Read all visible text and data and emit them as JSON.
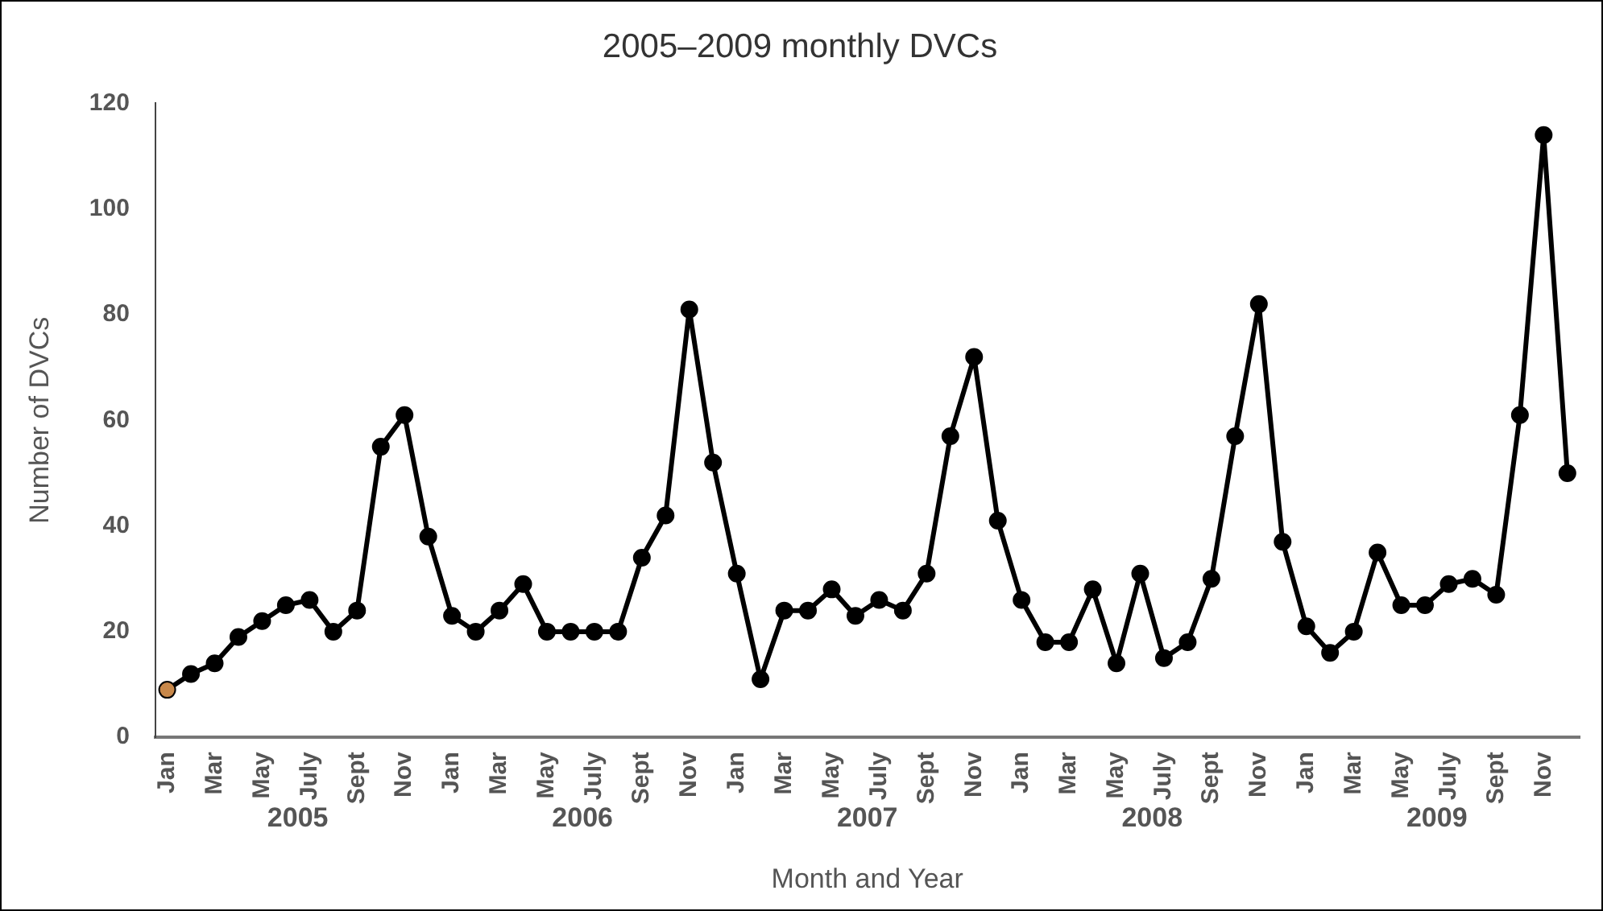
{
  "chart_data": {
    "type": "line",
    "title": "2005–2009 monthly DVCs",
    "xlabel": "Month and Year",
    "ylabel": "Number of DVCs",
    "categories": [
      "Jan",
      null,
      "Mar",
      null,
      "May",
      null,
      "July",
      null,
      "Sept",
      null,
      "Nov",
      null,
      "Jan",
      null,
      "Mar",
      null,
      "May",
      null,
      "July",
      null,
      "Sept",
      null,
      "Nov",
      null,
      "Jan",
      null,
      "Mar",
      null,
      "May",
      null,
      "July",
      null,
      "Sept",
      null,
      "Nov",
      null,
      "Jan",
      null,
      "Mar",
      null,
      "May",
      null,
      "July",
      null,
      "Sept",
      null,
      "Nov",
      null,
      "Jan",
      null,
      "Mar",
      null,
      "May",
      null,
      "July",
      null,
      "Sept",
      null,
      "Nov",
      null
    ],
    "series": [
      {
        "color": "#000000",
        "colors": [
          "#c8884a",
          "#000000",
          "#000000",
          "#000000",
          "#000000",
          "#000000",
          "#000000",
          "#000000",
          "#000000",
          "#000000",
          "#000000",
          "#000000",
          "#000000",
          "#000000",
          "#000000",
          "#000000",
          "#000000",
          "#000000",
          "#000000",
          "#000000",
          "#000000",
          "#000000",
          "#000000",
          "#000000",
          "#000000",
          "#000000",
          "#000000",
          "#000000",
          "#000000",
          "#000000",
          "#000000",
          "#000000",
          "#000000",
          "#000000",
          "#000000",
          "#000000",
          "#000000",
          "#000000",
          "#000000",
          "#000000",
          "#000000",
          "#000000",
          "#000000",
          "#000000",
          "#000000",
          "#000000",
          "#000000",
          "#000000",
          "#000000",
          "#000000",
          "#000000",
          "#000000",
          "#000000",
          "#000000",
          "#000000",
          "#000000",
          "#000000",
          "#000000",
          "#000000",
          "#000000"
        ],
        "values": [
          9,
          12,
          14,
          19,
          22,
          25,
          26,
          20,
          24,
          55,
          61,
          38,
          23,
          20,
          24,
          29,
          20,
          20,
          20,
          20,
          34,
          42,
          81,
          52,
          31,
          11,
          24,
          24,
          28,
          23,
          26,
          24,
          31,
          57,
          72,
          41,
          26,
          18,
          18,
          28,
          14,
          31,
          15,
          18,
          30,
          57,
          82,
          37,
          21,
          16,
          20,
          35,
          25,
          25,
          29,
          30,
          27,
          61,
          114,
          50
        ]
      }
    ],
    "annotations": [
      "2005",
      "2006",
      "2007",
      "2008",
      "2009"
    ],
    "ylim": [
      0,
      120
    ],
    "yticks": [
      0,
      20,
      40,
      60,
      80,
      100,
      120
    ],
    "grid": false,
    "legend": false,
    "marker": "circle",
    "line_style": "solid"
  }
}
